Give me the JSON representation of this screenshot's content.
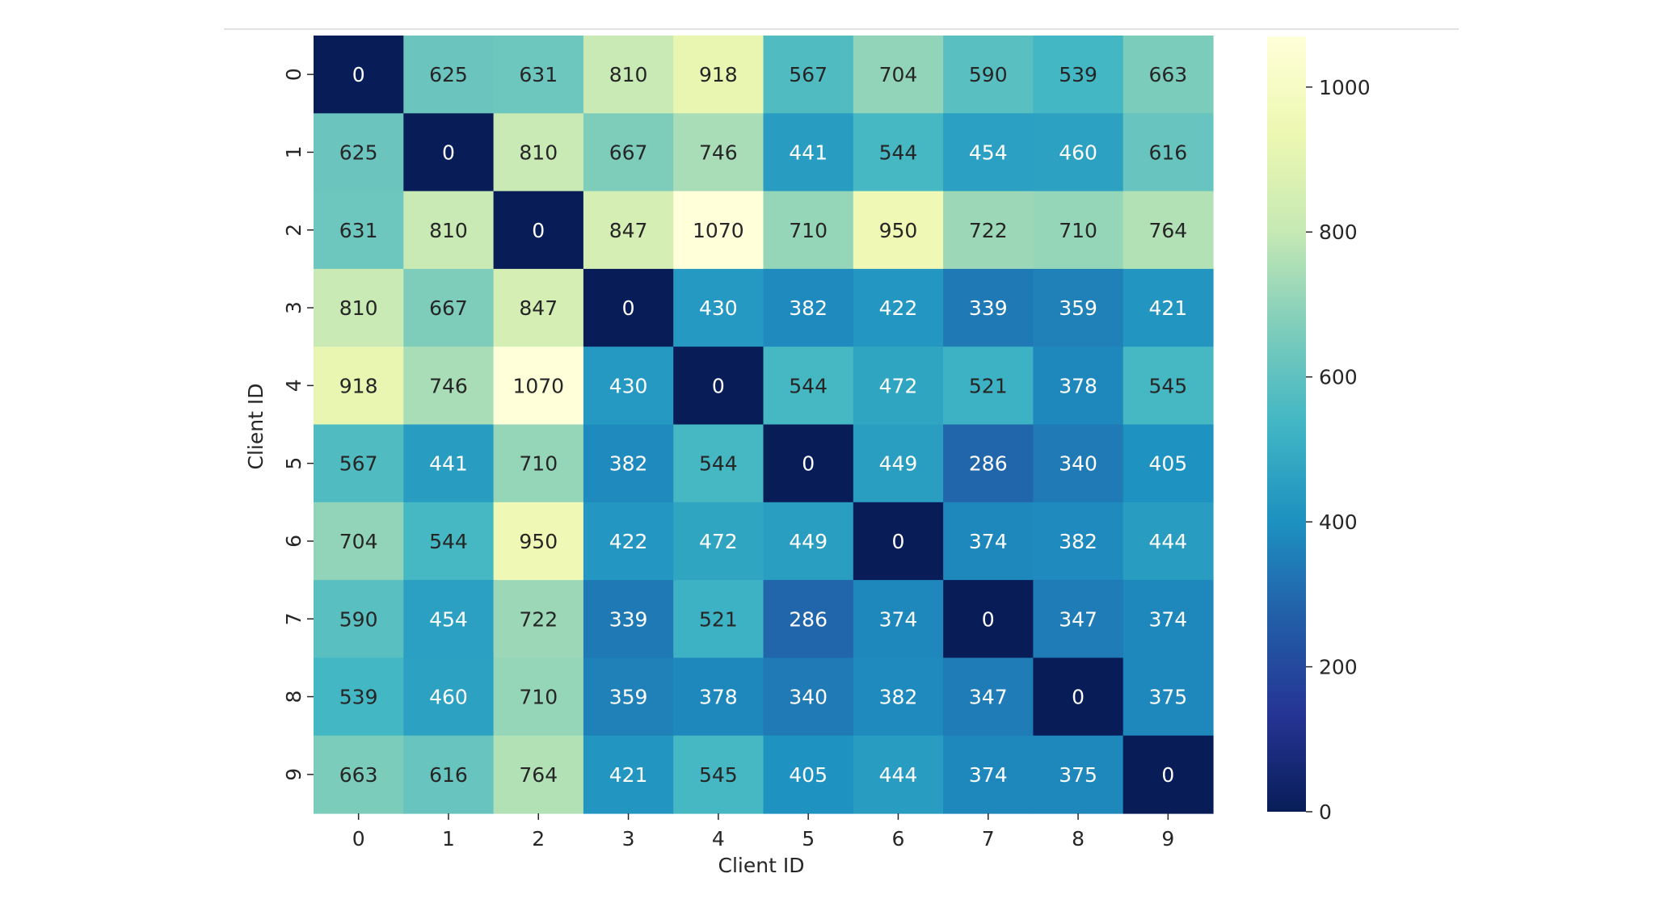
{
  "chart_data": {
    "type": "heatmap",
    "title": "",
    "xlabel": "Client ID",
    "ylabel": "Client ID",
    "x_categories": [
      "0",
      "1",
      "2",
      "3",
      "4",
      "5",
      "6",
      "7",
      "8",
      "9"
    ],
    "y_categories": [
      "0",
      "1",
      "2",
      "3",
      "4",
      "5",
      "6",
      "7",
      "8",
      "9"
    ],
    "values": [
      [
        0,
        625,
        631,
        810,
        918,
        567,
        704,
        590,
        539,
        663
      ],
      [
        625,
        0,
        810,
        667,
        746,
        441,
        544,
        454,
        460,
        616
      ],
      [
        631,
        810,
        0,
        847,
        1070,
        710,
        950,
        722,
        710,
        764
      ],
      [
        810,
        667,
        847,
        0,
        430,
        382,
        422,
        339,
        359,
        421
      ],
      [
        918,
        746,
        1070,
        430,
        0,
        544,
        472,
        521,
        378,
        545
      ],
      [
        567,
        441,
        710,
        382,
        544,
        0,
        449,
        286,
        340,
        405
      ],
      [
        704,
        544,
        950,
        422,
        472,
        449,
        0,
        374,
        382,
        444
      ],
      [
        590,
        454,
        722,
        339,
        521,
        286,
        374,
        0,
        347,
        374
      ],
      [
        539,
        460,
        710,
        359,
        378,
        340,
        382,
        347,
        0,
        375
      ],
      [
        663,
        616,
        764,
        421,
        545,
        405,
        444,
        374,
        375,
        0
      ]
    ],
    "annotations": true,
    "colormap": "YlGnBu_r",
    "colorbar": {
      "range": [
        0,
        1070
      ],
      "ticks": [
        0,
        200,
        400,
        600,
        800,
        1000
      ],
      "tick_labels": [
        "0",
        "200",
        "400",
        "600",
        "800",
        "1000"
      ],
      "placement": "right"
    },
    "grid": false
  },
  "colors": {
    "background": "#ffffff",
    "text": "#262626",
    "text_light": "#ffffff",
    "separator": "#d9d9d9"
  }
}
